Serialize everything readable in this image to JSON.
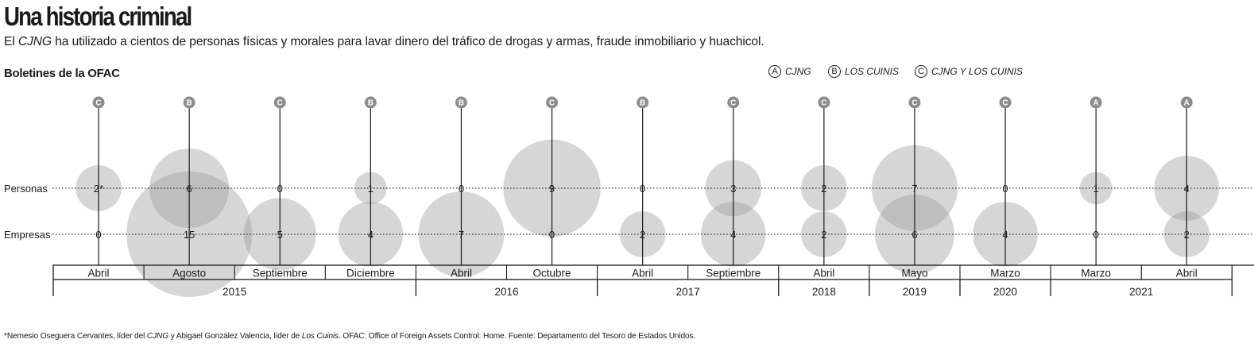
{
  "title": "Una historia criminal",
  "subtitle_parts": {
    "before": "El ",
    "em": "CJNG",
    "after": " ha utilizado a cientos de personas físicas y morales para lavar dinero del tráfico de drogas y armas, fraude inmobiliario y huachicol."
  },
  "section_title": "Boletines de la OFAC",
  "legend": [
    {
      "letter": "A",
      "label": "CJNG"
    },
    {
      "letter": "B",
      "label": "LOS CUINIS"
    },
    {
      "letter": "C",
      "label": "CJNG Y LOS CUINIS"
    }
  ],
  "footnote_parts": [
    {
      "text": "*Nemesio Oseguera Cervantes, líder del ",
      "em": false
    },
    {
      "text": "CJNG",
      "em": true
    },
    {
      "text": " y Abigael González Valencia, líder de ",
      "em": false
    },
    {
      "text": "Los Cuinis",
      "em": true
    },
    {
      "text": ". OFAC: Office of Foreign Assets Control: Home. Fuente: Departamento del Tesoro de Estados Unidos.",
      "em": false
    }
  ],
  "chart_data": {
    "type": "bubble-timeline",
    "row_labels": [
      "Personas",
      "Empresas"
    ],
    "bubble_color": "#9e9e9e",
    "badge_color": "#8c8c8c",
    "series": [
      {
        "year": "2015",
        "month": "Abril",
        "group": "C",
        "personas": 2,
        "personas_label": "2*",
        "empresas": 0
      },
      {
        "year": "2015",
        "month": "Agosto",
        "group": "B",
        "personas": 6,
        "personas_label": "6",
        "empresas": 15
      },
      {
        "year": "2015",
        "month": "Septiembre",
        "group": "C",
        "personas": 0,
        "personas_label": "0",
        "empresas": 5
      },
      {
        "year": "2015",
        "month": "Diciembre",
        "group": "B",
        "personas": 1,
        "personas_label": "1",
        "empresas": 4
      },
      {
        "year": "2016",
        "month": "Abril",
        "group": "B",
        "personas": 0,
        "personas_label": "0",
        "empresas": 7
      },
      {
        "year": "2016",
        "month": "Octubre",
        "group": "C",
        "personas": 9,
        "personas_label": "9",
        "empresas": 0
      },
      {
        "year": "2017",
        "month": "Abril",
        "group": "B",
        "personas": 0,
        "personas_label": "0",
        "empresas": 2
      },
      {
        "year": "2017",
        "month": "Septiembre",
        "group": "C",
        "personas": 3,
        "personas_label": "3",
        "empresas": 4
      },
      {
        "year": "2018",
        "month": "Abril",
        "group": "C",
        "personas": 2,
        "personas_label": "2",
        "empresas": 2
      },
      {
        "year": "2019",
        "month": "Mayo",
        "group": "C",
        "personas": 7,
        "personas_label": "7",
        "empresas": 6
      },
      {
        "year": "2020",
        "month": "Marzo",
        "group": "C",
        "personas": 0,
        "personas_label": "0",
        "empresas": 4
      },
      {
        "year": "2021",
        "month": "Marzo",
        "group": "A",
        "personas": 1,
        "personas_label": "1",
        "empresas": 0
      },
      {
        "year": "2021",
        "month": "Abril",
        "group": "A",
        "personas": 4,
        "personas_label": "4",
        "empresas": 2
      }
    ],
    "years": [
      "2015",
      "2016",
      "2017",
      "2018",
      "2019",
      "2020",
      "2021"
    ]
  }
}
